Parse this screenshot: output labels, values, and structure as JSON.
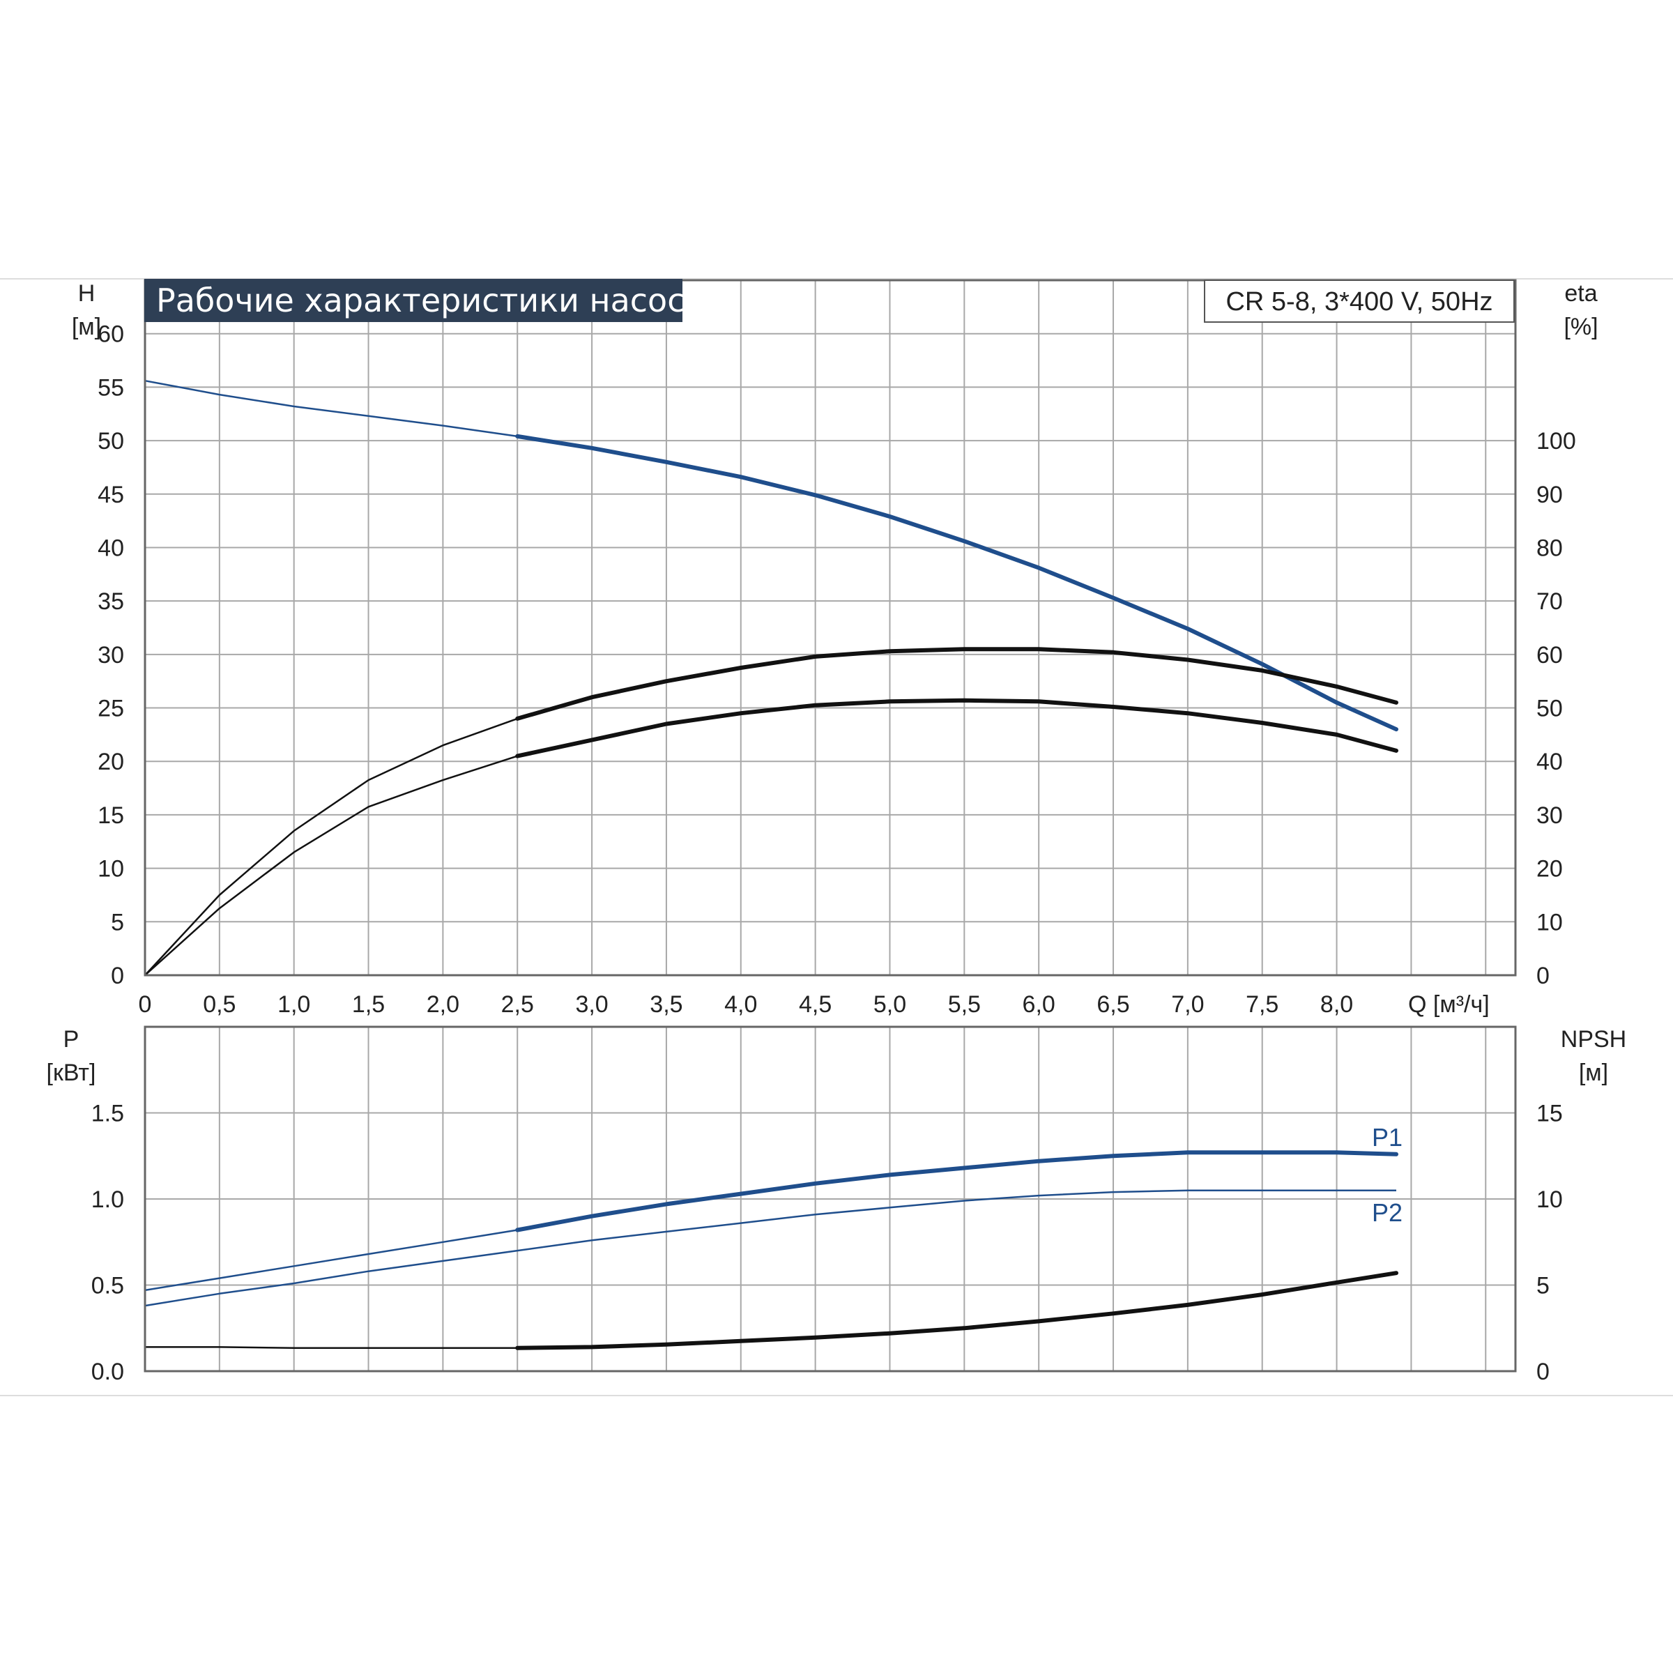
{
  "title": "Рабочие характеристики насоса",
  "model": "CR 5-8, 3*400 V, 50Hz",
  "colors": {
    "blue": "#1f4e8c",
    "black": "#111111",
    "title_bg": "#2e3f55",
    "grid": "#a6a6a6"
  },
  "chart_data": [
    {
      "type": "line",
      "name": "head-efficiency",
      "x_label_lines": [
        "Q [м³/ч]"
      ],
      "left_axis": {
        "label_lines": [
          "H",
          "[м]"
        ],
        "range": [
          0,
          65
        ],
        "ticks": [
          0,
          5,
          10,
          15,
          20,
          25,
          30,
          35,
          40,
          45,
          50,
          55,
          60
        ]
      },
      "right_axis": {
        "label_lines": [
          "eta",
          "[%]"
        ],
        "range": [
          0,
          130
        ],
        "ticks": [
          0,
          10,
          20,
          30,
          40,
          50,
          60,
          70,
          80,
          90,
          100
        ]
      },
      "x_range": [
        0,
        9.2
      ],
      "x_ticks": [
        "0",
        "0,5",
        "1,0",
        "1,5",
        "2,0",
        "2,5",
        "3,0",
        "3,5",
        "4,0",
        "4,5",
        "5,0",
        "5,5",
        "6,0",
        "6,5",
        "7,0",
        "7,5",
        "8,0"
      ],
      "x_tick_values": [
        0,
        0.5,
        1.0,
        1.5,
        2.0,
        2.5,
        3.0,
        3.5,
        4.0,
        4.5,
        5.0,
        5.5,
        6.0,
        6.5,
        7.0,
        7.5,
        8.0
      ],
      "grid": true,
      "series": [
        {
          "key": "H",
          "axis": "left",
          "color": "blue",
          "thick_from": 2.5,
          "x": [
            0,
            0.5,
            1.0,
            1.5,
            2.0,
            2.5,
            3.0,
            3.5,
            4.0,
            4.5,
            5.0,
            5.5,
            6.0,
            6.5,
            7.0,
            7.5,
            8.0,
            8.4
          ],
          "y": [
            55.6,
            54.3,
            53.2,
            52.3,
            51.4,
            50.4,
            49.3,
            48.0,
            46.6,
            44.9,
            42.9,
            40.6,
            38.1,
            35.3,
            32.4,
            29.1,
            25.5,
            23.0
          ]
        },
        {
          "key": "eta_a",
          "axis": "right",
          "color": "black",
          "thick_from": 2.5,
          "x": [
            0,
            0.5,
            1.0,
            1.5,
            2.0,
            2.5,
            3.0,
            3.5,
            4.0,
            4.5,
            5.0,
            5.5,
            6.0,
            6.5,
            7.0,
            7.5,
            8.0,
            8.4
          ],
          "y": [
            0,
            15,
            27,
            36.5,
            43,
            48,
            52,
            55,
            57.5,
            59.6,
            60.6,
            61,
            61,
            60.4,
            59,
            57,
            54,
            51
          ]
        },
        {
          "key": "eta_b",
          "axis": "right",
          "color": "black",
          "thick_from": 2.5,
          "x": [
            0,
            0.5,
            1.0,
            1.5,
            2.0,
            2.5,
            3.0,
            3.5,
            4.0,
            4.5,
            5.0,
            5.5,
            6.0,
            6.5,
            7.0,
            7.5,
            8.0,
            8.4
          ],
          "y": [
            0,
            12.5,
            23,
            31.5,
            36.5,
            41,
            44,
            47,
            49,
            50.5,
            51.2,
            51.4,
            51.2,
            50.2,
            49,
            47.2,
            45,
            42
          ]
        }
      ]
    },
    {
      "type": "line",
      "name": "power-npsh",
      "left_axis": {
        "label_lines": [
          "P",
          "[кВт]"
        ],
        "range": [
          0,
          2.0
        ],
        "ticks": [
          "0.0",
          "0.5",
          "1.0",
          "1.5"
        ],
        "tick_values": [
          0,
          0.5,
          1.0,
          1.5
        ]
      },
      "right_axis": {
        "label_lines": [
          "NPSH",
          "[м]"
        ],
        "range": [
          0,
          20
        ],
        "ticks": [
          0,
          5,
          10,
          15
        ]
      },
      "x_range": [
        0,
        9.2
      ],
      "grid": true,
      "series": [
        {
          "key": "P1",
          "name": "P1",
          "axis": "left",
          "color": "blue",
          "thick_from": 2.5,
          "x": [
            0,
            0.5,
            1.0,
            1.5,
            2.0,
            2.5,
            3.0,
            3.5,
            4.0,
            4.5,
            5.0,
            5.5,
            6.0,
            6.5,
            7.0,
            7.5,
            8.0,
            8.4
          ],
          "y": [
            0.47,
            0.54,
            0.61,
            0.68,
            0.75,
            0.82,
            0.9,
            0.97,
            1.03,
            1.09,
            1.14,
            1.18,
            1.22,
            1.25,
            1.27,
            1.27,
            1.27,
            1.26
          ]
        },
        {
          "key": "P2",
          "name": "P2",
          "axis": "left",
          "color": "blue",
          "thick_from": 99,
          "x": [
            0,
            0.5,
            1.0,
            1.5,
            2.0,
            2.5,
            3.0,
            3.5,
            4.0,
            4.5,
            5.0,
            5.5,
            6.0,
            6.5,
            7.0,
            7.5,
            8.0,
            8.4
          ],
          "y": [
            0.38,
            0.45,
            0.51,
            0.58,
            0.64,
            0.7,
            0.76,
            0.81,
            0.86,
            0.91,
            0.95,
            0.99,
            1.02,
            1.04,
            1.05,
            1.05,
            1.05,
            1.05
          ]
        },
        {
          "key": "NPSH",
          "axis": "right",
          "color": "black",
          "thick_from": 2.5,
          "x": [
            0,
            0.5,
            1.0,
            1.5,
            2.0,
            2.5,
            3.0,
            3.5,
            4.0,
            4.5,
            5.0,
            5.5,
            6.0,
            6.5,
            7.0,
            7.5,
            8.0,
            8.4
          ],
          "y": [
            1.4,
            1.4,
            1.35,
            1.35,
            1.35,
            1.35,
            1.4,
            1.55,
            1.75,
            1.95,
            2.2,
            2.5,
            2.9,
            3.35,
            3.85,
            4.45,
            5.15,
            5.7
          ]
        }
      ]
    }
  ]
}
